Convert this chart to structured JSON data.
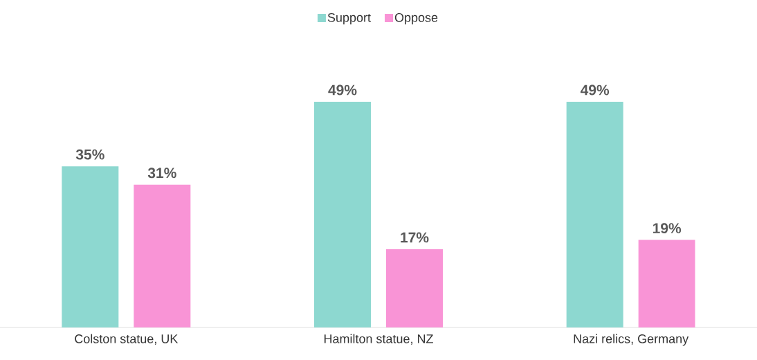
{
  "chart_data": {
    "type": "bar",
    "categories": [
      "Colston statue, UK",
      "Hamilton statue, NZ",
      "Nazi relics, Germany"
    ],
    "series": [
      {
        "name": "Support",
        "color": "#8dd8d0",
        "values": [
          35,
          49,
          49
        ],
        "value_labels": [
          "35%",
          "49%",
          "49%"
        ]
      },
      {
        "name": "Oppose",
        "color": "#f994d6",
        "values": [
          31,
          17,
          19
        ],
        "value_labels": [
          "31%",
          "17%",
          "19%"
        ]
      }
    ],
    "legend": "top"
  }
}
